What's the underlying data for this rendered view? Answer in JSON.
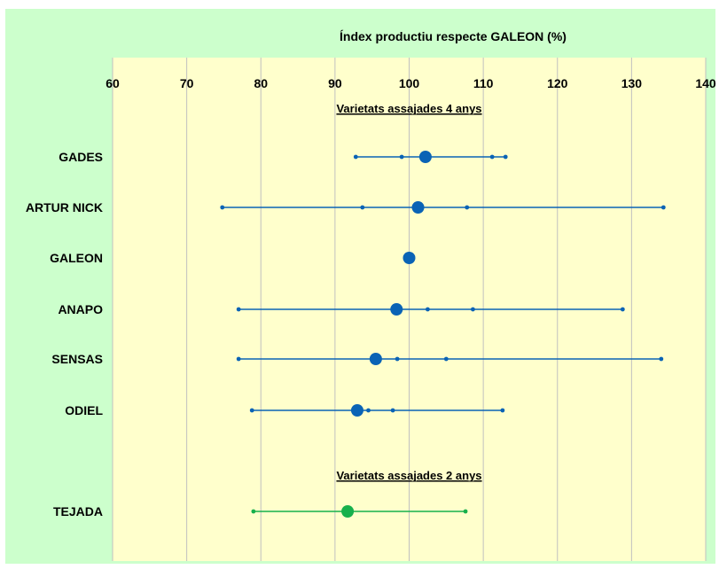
{
  "chart_data": {
    "type": "scatter",
    "title": "Índex productiu respecte GALEON (%)",
    "xlim": [
      60,
      140
    ],
    "x_ticks": [
      "60",
      "70",
      "80",
      "90",
      "100",
      "110",
      "120",
      "130",
      "140"
    ],
    "grid": true,
    "grid_axis": "x",
    "colors": {
      "outer_background": "#ccffcc",
      "plot_background": "#ffffcc",
      "grid": "#c0c0c0",
      "blue": "#0a63b5",
      "green": "#17b04c"
    },
    "groups": [
      {
        "label": "Varietats assajades 4 anys",
        "color": "#0a63b5",
        "varieties": [
          {
            "name": "GADES",
            "min": 92.8,
            "max": 113.0,
            "mean": 102.2,
            "points": [
              92.8,
              99.0,
              111.2,
              113.0
            ]
          },
          {
            "name": "ARTUR NICK",
            "min": 74.8,
            "max": 134.3,
            "mean": 101.2,
            "points": [
              74.8,
              93.7,
              107.8,
              134.3
            ]
          },
          {
            "name": "GALEON",
            "min": 100.0,
            "max": 100.0,
            "mean": 100.0,
            "points": []
          },
          {
            "name": "ANAPO",
            "min": 77.0,
            "max": 128.8,
            "mean": 98.3,
            "points": [
              77.0,
              102.5,
              108.6,
              128.8
            ]
          },
          {
            "name": "SENSAS",
            "min": 77.0,
            "max": 134.0,
            "mean": 95.5,
            "points": [
              77.0,
              98.4,
              105.0,
              134.0
            ]
          },
          {
            "name": "ODIEL",
            "min": 78.8,
            "max": 112.6,
            "mean": 93.0,
            "points": [
              78.8,
              94.5,
              97.8,
              112.6
            ]
          }
        ]
      },
      {
        "label": "Varietats assajades 2 anys",
        "color": "#17b04c",
        "varieties": [
          {
            "name": "TEJADA",
            "min": 79.0,
            "max": 107.6,
            "mean": 91.7,
            "points": [
              79.0,
              107.6
            ]
          }
        ]
      }
    ]
  }
}
